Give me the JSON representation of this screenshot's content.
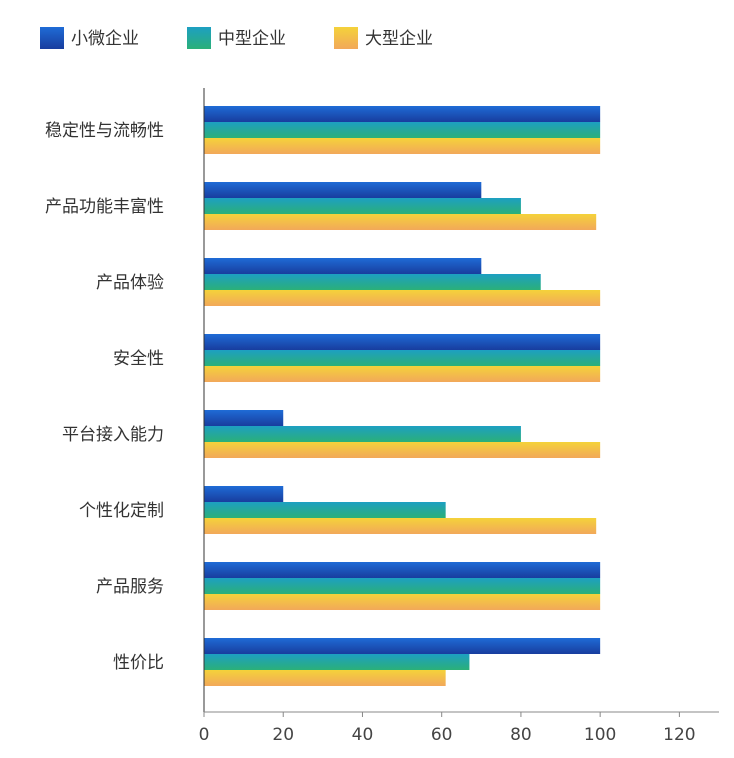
{
  "chart_data": {
    "type": "bar",
    "orientation": "horizontal",
    "categories": [
      "稳定性与流畅性",
      "产品功能丰富性",
      "产品体验",
      "安全性",
      "平台接入能力",
      "个性化定制",
      "产品服务",
      "性价比"
    ],
    "series": [
      {
        "name": "小微企业",
        "color": "#1a4fc4",
        "values": [
          100,
          70,
          70,
          100,
          20,
          20,
          100,
          100
        ]
      },
      {
        "name": "中型企业",
        "color": "#23a87a",
        "values": [
          100,
          80,
          85,
          100,
          80,
          61,
          100,
          67
        ]
      },
      {
        "name": "大型企业",
        "color": "#f2b544",
        "values": [
          100,
          99,
          100,
          100,
          100,
          99,
          100,
          61
        ]
      }
    ],
    "xlim": [
      0,
      130
    ],
    "xticks": [
      0,
      20,
      40,
      60,
      80,
      100,
      120
    ],
    "legend_position": "top-left",
    "grid": false
  }
}
